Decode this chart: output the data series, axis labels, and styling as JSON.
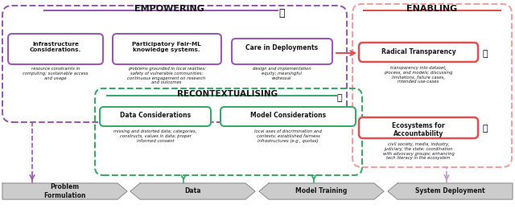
{
  "empowering_label": "EMPOWERING",
  "enabling_label": "ENABLING",
  "recontextualising_label": "RECONTEXTUALISING",
  "pipeline": [
    "Problem\nFormulation",
    "Data",
    "Model Training",
    "System Deployment"
  ],
  "colors": {
    "purple": "#9b59b6",
    "purple_light": "#c39bd3",
    "red": "#e05050",
    "red_light": "#f0a0a0",
    "green": "#3aaa6a",
    "green_light": "#82e0aa",
    "bg": "#ffffff",
    "text_dark": "#1a1a1a",
    "gray": "#cccccc",
    "gray_border": "#888888"
  }
}
